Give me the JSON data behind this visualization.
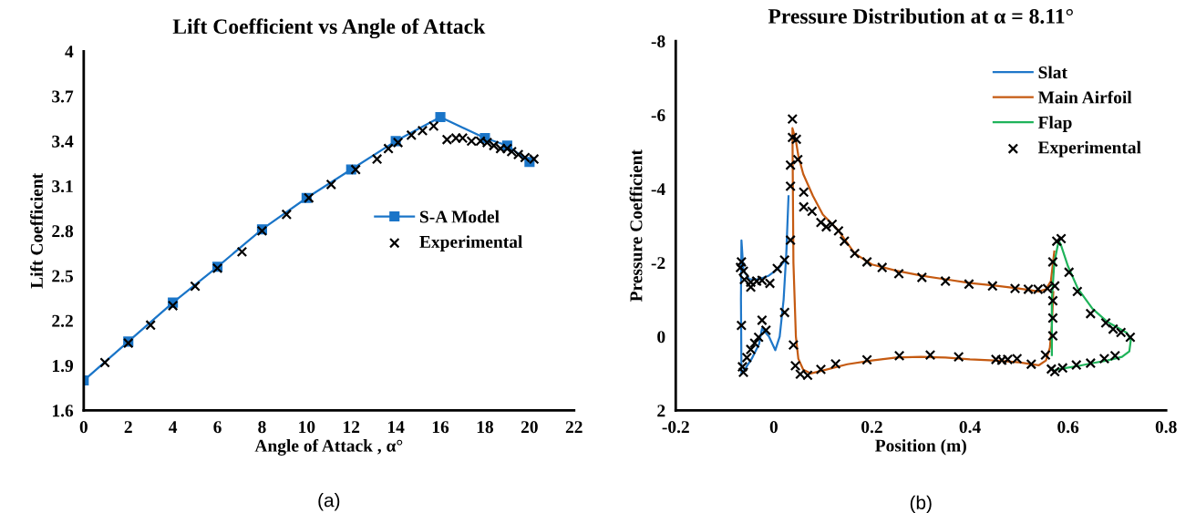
{
  "chart_data": [
    {
      "type": "line",
      "title": "Lift Coefficient vs Angle of Attack",
      "xlabel": "Angle of Attack , α°",
      "ylabel": "Lift Coefficient",
      "annotations": [
        "(a)"
      ],
      "xlim": [
        0,
        22
      ],
      "xticks": [
        0,
        2,
        4,
        6,
        8,
        10,
        12,
        14,
        16,
        18,
        20,
        22
      ],
      "ylim": [
        1.6,
        4
      ],
      "yticks": [
        1.6,
        1.9,
        2.2,
        2.5,
        2.8,
        3.1,
        3.4,
        3.7,
        4
      ],
      "grid": false,
      "legend": "right",
      "series": [
        {
          "name": "S-A Model",
          "type": "line",
          "color": "#1a75c8",
          "marker": "square",
          "x": [
            0,
            2,
            4,
            6,
            8,
            10,
            12,
            14,
            16,
            18,
            19,
            20
          ],
          "values": [
            1.8,
            2.06,
            2.32,
            2.56,
            2.81,
            3.02,
            3.21,
            3.4,
            3.56,
            3.42,
            3.37,
            3.26
          ]
        },
        {
          "name": "Experimental",
          "type": "scatter",
          "color": "#000000",
          "marker": "cross",
          "x": [
            0.95,
            2,
            3,
            4,
            5,
            6,
            7.1,
            8,
            9.1,
            10.1,
            11.1,
            12.2,
            13.16,
            13.67,
            14.1,
            14.7,
            15.2,
            15.7,
            16.3,
            16.7,
            17,
            17.4,
            17.8,
            18.1,
            18.4,
            18.7,
            19,
            19.2,
            19.5,
            19.8,
            20.2
          ],
          "values": [
            1.92,
            2.05,
            2.17,
            2.3,
            2.43,
            2.55,
            2.66,
            2.8,
            2.91,
            3.02,
            3.11,
            3.21,
            3.28,
            3.35,
            3.39,
            3.44,
            3.47,
            3.5,
            3.41,
            3.42,
            3.42,
            3.4,
            3.4,
            3.39,
            3.37,
            3.35,
            3.35,
            3.33,
            3.31,
            3.29,
            3.28
          ]
        }
      ]
    },
    {
      "type": "line",
      "title": "Pressure Distribution at α = 8.11°",
      "xlabel": "Position (m)",
      "ylabel": "Pressure Coefficient",
      "annotations": [
        "(b)"
      ],
      "xlim": [
        -0.2,
        0.8
      ],
      "xticks": [
        -0.2,
        0,
        0.2,
        0.4,
        0.6,
        0.8
      ],
      "ylim": [
        2,
        -8
      ],
      "yticks": [
        2,
        0,
        -2,
        -4,
        -6,
        -8
      ],
      "grid": false,
      "legend": "top right",
      "series": [
        {
          "name": "Slat",
          "type": "line",
          "color": "#1f77c9",
          "marker": "none",
          "x": [
            0.03,
            0.025,
            0.01,
            -0.01,
            -0.03,
            -0.05,
            -0.062,
            -0.066,
            -0.067,
            -0.066,
            -0.06,
            -0.045,
            -0.03,
            -0.024,
            -0.01,
            0.003,
            0.012,
            0.02,
            0.027
          ],
          "values": [
            -3.8,
            -2.1,
            -1.85,
            -1.65,
            -1.55,
            -1.55,
            -1.8,
            -2.6,
            -1.0,
            1.0,
            0.9,
            0.6,
            0.2,
            -0.22,
            0.0,
            0.37,
            0.0,
            -1.0,
            -2.6
          ]
        },
        {
          "name": "Main Airfoil",
          "type": "line",
          "color": "#c55a11",
          "marker": "none",
          "x": [
            0.57,
            0.567,
            0.563,
            0.555,
            0.54,
            0.5,
            0.45,
            0.4,
            0.35,
            0.3,
            0.25,
            0.2,
            0.15,
            0.1,
            0.075,
            0.06,
            0.05,
            0.045,
            0.04,
            0.038,
            0.045,
            0.05,
            0.06,
            0.08,
            0.1,
            0.13,
            0.165,
            0.2,
            0.25,
            0.3,
            0.35,
            0.4,
            0.45,
            0.5,
            0.54,
            0.555,
            0.565,
            0.572
          ],
          "values": [
            -1.2,
            -0.3,
            0.3,
            0.65,
            0.78,
            0.7,
            0.65,
            0.62,
            0.57,
            0.55,
            0.57,
            0.65,
            0.75,
            0.92,
            1.0,
            0.9,
            0.6,
            0.0,
            -2.0,
            -5.64,
            -5.3,
            -4.9,
            -4.4,
            -3.8,
            -3.3,
            -2.9,
            -2.25,
            -1.95,
            -1.78,
            -1.65,
            -1.55,
            -1.45,
            -1.38,
            -1.3,
            -1.22,
            -1.28,
            -1.5,
            -2.3
          ]
        },
        {
          "name": "Flap",
          "type": "line",
          "color": "#1fb35a",
          "marker": "none",
          "x": [
            0.567,
            0.567,
            0.572,
            0.581,
            0.585,
            0.6,
            0.62,
            0.65,
            0.68,
            0.7,
            0.72,
            0.728,
            0.725,
            0.71,
            0.68,
            0.65,
            0.62,
            0.595,
            0.575
          ],
          "values": [
            0.5,
            -1.0,
            -2.0,
            -2.6,
            -2.5,
            -1.9,
            -1.3,
            -0.75,
            -0.4,
            -0.25,
            -0.1,
            0.1,
            0.4,
            0.55,
            0.65,
            0.72,
            0.8,
            0.85,
            0.9
          ]
        },
        {
          "name": "Experimental",
          "type": "scatter",
          "color": "#000000",
          "marker": "cross",
          "x": [
            0.038,
            0.038,
            0.046,
            0.049,
            0.034,
            0.034,
            0.061,
            0.061,
            0.078,
            0.096,
            0.107,
            0.119,
            0.132,
            0.144,
            0.165,
            0.034,
            0.577,
            0.586,
            0.19,
            0.221,
            0.255,
            0.302,
            0.35,
            0.398,
            0.446,
            0.492,
            0.519,
            0.539,
            0.558,
            0.573,
            0.569,
            0.569,
            0.569,
            0.569,
            0.602,
            0.619,
            0.646,
            0.677,
            0.692,
            0.708,
            0.727,
            0.696,
            0.674,
            0.646,
            0.617,
            0.589,
            0.573,
            0.566,
            0.554,
            0.525,
            0.496,
            0.477,
            0.465,
            0.453,
            0.377,
            0.319,
            0.256,
            0.19,
            0.126,
            0.096,
            0.069,
            0.054,
            0.044,
            0.04,
            0.022,
            0.022,
            0.007,
            -0.008,
            -0.024,
            -0.035,
            -0.047,
            -0.047,
            -0.06,
            -0.062,
            -0.066,
            -0.068,
            -0.066,
            -0.024,
            -0.031,
            -0.039,
            -0.047,
            -0.055,
            -0.064,
            -0.062,
            -0.016
          ],
          "values": [
            -5.89,
            -5.39,
            -5.34,
            -4.79,
            -4.64,
            -4.07,
            -3.91,
            -3.51,
            -3.39,
            -3.09,
            -2.97,
            -3.04,
            -2.86,
            -2.58,
            -2.25,
            -2.61,
            -2.58,
            -2.65,
            -2.02,
            -1.87,
            -1.7,
            -1.6,
            -1.5,
            -1.42,
            -1.37,
            -1.3,
            -1.28,
            -1.28,
            -1.3,
            -1.37,
            -2.02,
            -0.97,
            -0.5,
            -0.02,
            -1.74,
            -1.22,
            -0.62,
            -0.37,
            -0.2,
            -0.11,
            0.02,
            0.52,
            0.6,
            0.72,
            0.77,
            0.85,
            0.95,
            0.88,
            0.5,
            0.75,
            0.6,
            0.62,
            0.64,
            0.62,
            0.55,
            0.5,
            0.52,
            0.63,
            0.74,
            0.89,
            1.05,
            1.02,
            0.79,
            0.23,
            -0.65,
            -2.07,
            -1.84,
            -1.44,
            -1.52,
            -1.5,
            -1.47,
            -1.34,
            -1.54,
            -1.77,
            -2.02,
            -1.87,
            -0.3,
            -0.44,
            0.02,
            0.18,
            0.35,
            0.57,
            0.82,
            0.97,
            -0.17
          ]
        }
      ]
    }
  ]
}
